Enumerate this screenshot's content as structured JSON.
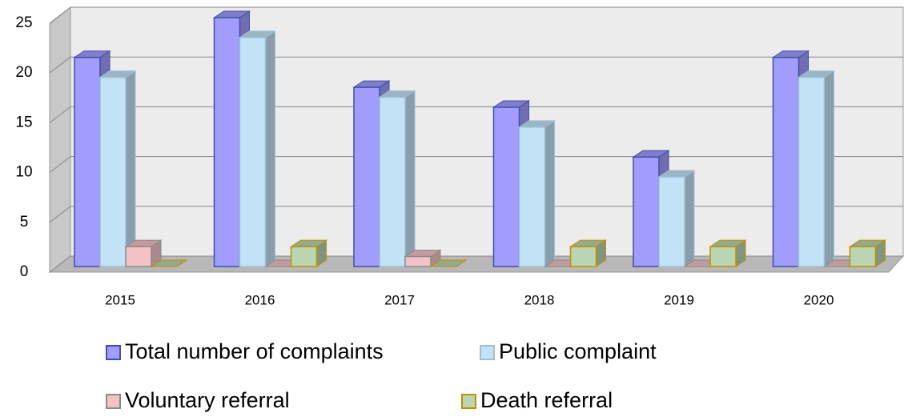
{
  "chart_data": {
    "type": "bar3d",
    "categories": [
      "2015",
      "2016",
      "2017",
      "2018",
      "2019",
      "2020"
    ],
    "series": [
      {
        "name": "Total number of complaints",
        "color": "#a29cfd",
        "values": [
          21,
          25,
          18,
          16,
          11,
          21
        ]
      },
      {
        "name": "Public complaint",
        "color": "#c2e2f6",
        "values": [
          19,
          23,
          17,
          14,
          9,
          19
        ]
      },
      {
        "name": "Voluntary referral",
        "color": "#f4c2c6",
        "values": [
          2,
          0,
          1,
          0,
          0,
          0
        ]
      },
      {
        "name": "Death referral",
        "color": "#b9d5b1",
        "values": [
          0,
          2,
          0,
          2,
          2,
          2
        ]
      }
    ],
    "ylim": [
      0,
      25
    ],
    "yticks": [
      0,
      5,
      10,
      15,
      20,
      25
    ],
    "grid": true
  }
}
